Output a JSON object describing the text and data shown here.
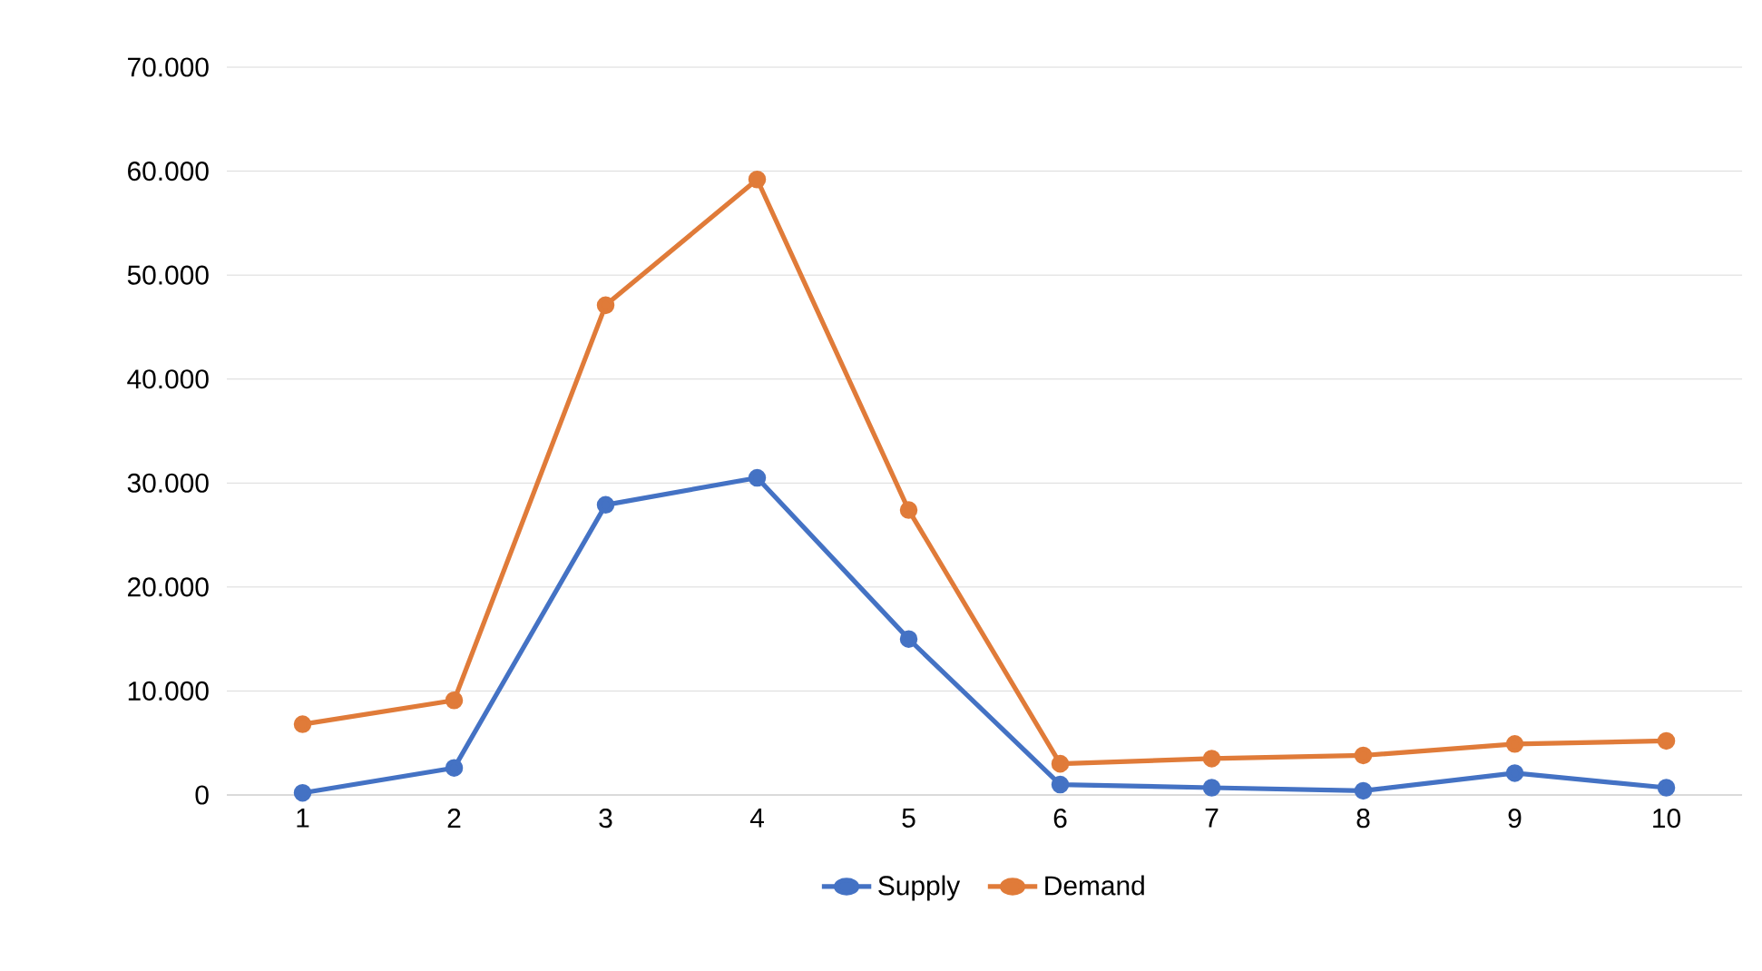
{
  "chart_data": {
    "type": "line",
    "categories": [
      "1",
      "2",
      "3",
      "4",
      "5",
      "6",
      "7",
      "8",
      "9",
      "10"
    ],
    "series": [
      {
        "name": "Supply",
        "color": "#4472c4",
        "values": [
          200,
          2600,
          27900,
          30500,
          15000,
          1000,
          700,
          400,
          2100,
          700
        ]
      },
      {
        "name": "Demand",
        "color": "#e07b39",
        "values": [
          6800,
          9100,
          47100,
          59200,
          27400,
          3000,
          3500,
          3800,
          4900,
          5200
        ]
      }
    ],
    "ylim": [
      0,
      70000
    ],
    "yticks": [
      {
        "value": 0,
        "label": "0"
      },
      {
        "value": 10000,
        "label": "10.000"
      },
      {
        "value": 20000,
        "label": "20.000"
      },
      {
        "value": 30000,
        "label": "30.000"
      },
      {
        "value": 40000,
        "label": "40.000"
      },
      {
        "value": 50000,
        "label": "50.000"
      },
      {
        "value": 60000,
        "label": "60.000"
      },
      {
        "value": 70000,
        "label": "70.000"
      }
    ],
    "grid": "y",
    "legend": "bottom",
    "marker": "circle",
    "line_style": "solid"
  }
}
